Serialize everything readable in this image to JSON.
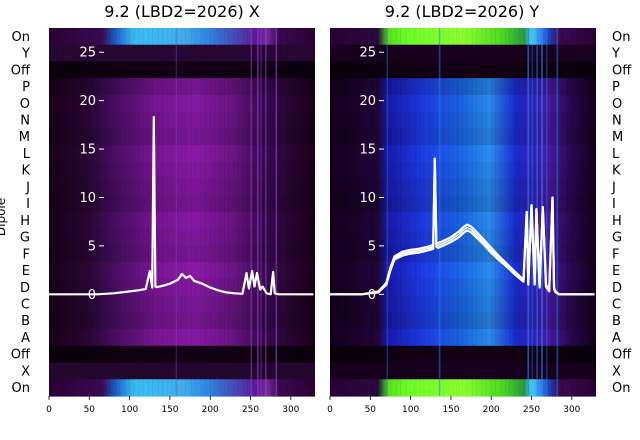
{
  "chart_data": [
    {
      "type": "heatmap",
      "title": "9.2 (LBD2=2026) X",
      "ylabel": "Dipole",
      "row_labels": [
        "On",
        "Y",
        "Off",
        "P",
        "O",
        "N",
        "M",
        "L",
        "K",
        "J",
        "I",
        "H",
        "G",
        "F",
        "E",
        "D",
        "C",
        "B",
        "A",
        "Off",
        "X",
        "On"
      ],
      "x_ticks": [
        0,
        50,
        100,
        150,
        200,
        250,
        300
      ],
      "xlim": [
        0,
        330
      ],
      "overlay_yticks": [
        0,
        5,
        10,
        15,
        20,
        25
      ],
      "overlay_ylim": [
        -10.5,
        27.5
      ],
      "overlay_series": {
        "x": [
          0,
          20,
          40,
          60,
          70,
          80,
          90,
          100,
          110,
          120,
          125,
          128,
          130,
          132,
          134,
          140,
          150,
          160,
          165,
          170,
          175,
          180,
          190,
          200,
          210,
          220,
          230,
          240,
          245,
          248,
          252,
          255,
          258,
          262,
          265,
          270,
          275,
          278,
          280,
          285,
          290,
          300,
          310,
          320,
          328
        ],
        "y": [
          0,
          0,
          0,
          0,
          0.05,
          0.1,
          0.2,
          0.3,
          0.4,
          0.55,
          2.4,
          0.7,
          18.3,
          0.8,
          0.75,
          0.85,
          1.1,
          1.5,
          2.1,
          1.7,
          1.9,
          1.4,
          1.1,
          0.7,
          0.4,
          0.2,
          0.1,
          0.05,
          2.2,
          0.6,
          2.4,
          0.8,
          2.2,
          0.5,
          0.8,
          0.1,
          0,
          2.3,
          0.1,
          0,
          0,
          0,
          0,
          0,
          0
        ]
      },
      "colors": {
        "ridge_left": "#3bbcf4",
        "ridge_right": "#1a6ad8",
        "heat_high": "#8a1aa8",
        "heat_low": "#1a0016",
        "overlay": "#ffffff"
      },
      "colormap": "purple"
    },
    {
      "type": "heatmap",
      "title": "9.2 (LBD2=2026) Y",
      "row_labels": [
        "On",
        "Y",
        "Off",
        "P",
        "O",
        "N",
        "M",
        "L",
        "K",
        "J",
        "I",
        "H",
        "G",
        "F",
        "E",
        "D",
        "C",
        "B",
        "A",
        "Off",
        "X",
        "On"
      ],
      "x_ticks": [
        0,
        50,
        100,
        150,
        200,
        250,
        300
      ],
      "xlim": [
        0,
        330
      ],
      "overlay_yticks": [
        0,
        5,
        10,
        15,
        20,
        25
      ],
      "overlay_ylim": [
        -10.5,
        27.5
      ],
      "overlay_series": {
        "x": [
          0,
          20,
          40,
          60,
          70,
          75,
          80,
          90,
          100,
          110,
          120,
          128,
          130,
          132,
          134,
          140,
          150,
          160,
          165,
          170,
          175,
          180,
          190,
          200,
          210,
          220,
          230,
          240,
          244,
          246,
          250,
          254,
          256,
          260,
          264,
          268,
          272,
          276,
          278,
          280,
          284,
          290,
          300,
          310,
          320,
          328
        ],
        "y": [
          0,
          0,
          0,
          0.2,
          1.0,
          2.5,
          3.6,
          4.0,
          4.2,
          4.3,
          4.5,
          4.7,
          14.0,
          4.9,
          4.8,
          5.0,
          5.4,
          5.9,
          6.3,
          6.6,
          6.4,
          6.0,
          5.2,
          4.3,
          3.5,
          2.8,
          2.0,
          1.3,
          8.5,
          1.0,
          9.2,
          1.0,
          8.8,
          0.7,
          9.0,
          0.8,
          0.3,
          10.0,
          0.5,
          0.2,
          0,
          0,
          0,
          0,
          0,
          0
        ],
        "y_upper": [
          0,
          0,
          0,
          0.3,
          1.2,
          2.8,
          3.9,
          4.4,
          4.6,
          4.7,
          4.9,
          5.1,
          14.0,
          5.3,
          5.3,
          5.5,
          5.9,
          6.5,
          6.9,
          7.2,
          7.0,
          6.6,
          5.7,
          4.8,
          3.9,
          3.1,
          2.3,
          1.5,
          8.5,
          1.2,
          9.2,
          1.2,
          8.8,
          0.9,
          9.0,
          1.0,
          0.4,
          10.0,
          0.6,
          0.3,
          0,
          0,
          0,
          0,
          0,
          0
        ]
      },
      "colors": {
        "ridge_left": "#70ff2a",
        "ridge_right": "#4bd3ff",
        "heat_high": "#1e3ce8",
        "heat_low": "#0e0028",
        "overlay": "#ffffff"
      },
      "colormap": "green-blue"
    }
  ]
}
